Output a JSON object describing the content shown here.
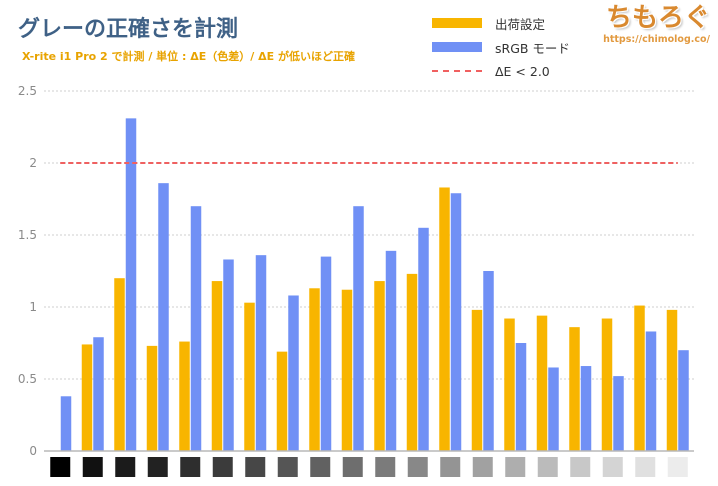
{
  "logo": {
    "text": "ちもろぐ",
    "url": "https://chimolog.co/"
  },
  "chart_data": {
    "type": "bar",
    "title": "グレーの正確さを計測",
    "subtitle": "X-rite i1 Pro 2 で計測 / 単位 : ΔE（色差）/ ΔE が低いほど正確",
    "ylim": [
      0,
      2.5
    ],
    "yticks": [
      0,
      0.5,
      1,
      1.5,
      2,
      2.5
    ],
    "grid": true,
    "legend": "top-right",
    "x_swatch_colors": [
      "#000000",
      "#111111",
      "#1b1b1b",
      "#222222",
      "#2e2e2e",
      "#3b3b3b",
      "#474747",
      "#555555",
      "#616161",
      "#6e6e6e",
      "#7b7b7b",
      "#888888",
      "#949494",
      "#a1a1a1",
      "#aeaeae",
      "#bbbbbb",
      "#c8c8c8",
      "#d4d4d4",
      "#e0e0e0",
      "#ececec"
    ],
    "series": [
      {
        "name": "出荷設定",
        "color": "#f8b500",
        "values": [
          0,
          0.74,
          1.2,
          0.73,
          0.76,
          1.18,
          1.03,
          0.69,
          1.13,
          1.12,
          1.18,
          1.23,
          1.83,
          0.98,
          0.92,
          0.94,
          0.86,
          0.92,
          1.01,
          0.98
        ]
      },
      {
        "name": "sRGB モード",
        "color": "#7090f5",
        "values": [
          0.38,
          0.79,
          2.31,
          1.86,
          1.7,
          1.33,
          1.36,
          1.08,
          1.35,
          1.7,
          1.39,
          1.55,
          1.79,
          1.25,
          0.75,
          0.58,
          0.59,
          0.52,
          0.83,
          0.7
        ]
      }
    ],
    "reference_line": {
      "label": "ΔE < 2.0",
      "value": 2.0,
      "color": "#f06060",
      "style": "dashed"
    }
  }
}
